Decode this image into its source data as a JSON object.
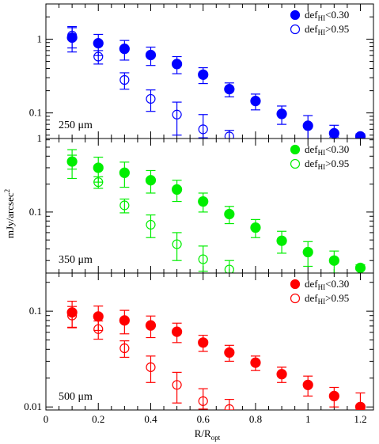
{
  "chart_data": {
    "type": "scatter",
    "xlabel": "R/R",
    "xlabel_sub": "opt",
    "ylabel": "mJy/arcsec",
    "ylabel_sup": "2",
    "xlim": [
      0,
      1.25
    ],
    "x_ticks": [
      0,
      0.2,
      0.4,
      0.6,
      0.8,
      1,
      1.2
    ],
    "x_tick_labels": [
      "0",
      "0.2",
      "0.4",
      "0.6",
      "0.8",
      "1",
      "1.2"
    ],
    "yscale": "log",
    "legend_labels": [
      {
        "prefix": "def",
        "sub": "HI",
        "suffix": "<0.30"
      },
      {
        "prefix": "def",
        "sub": "HI",
        "suffix": ">0.95"
      }
    ],
    "panels": [
      {
        "band": "250 μm",
        "color": "#0000ff",
        "ylim": [
          0.045,
          3.0
        ],
        "y_ticks": [
          0.1,
          1
        ],
        "y_tick_labels": [
          "0.1",
          "1"
        ],
        "series": [
          {
            "marker": "filled",
            "x": [
              0.1,
              0.2,
              0.3,
              0.4,
              0.5,
              0.6,
              0.7,
              0.8,
              0.9,
              1.0,
              1.1,
              1.2
            ],
            "y": [
              1.05,
              0.88,
              0.74,
              0.61,
              0.46,
              0.33,
              0.21,
              0.145,
              0.097,
              0.067,
              0.053,
              0.048
            ],
            "err_low": [
              0.38,
              0.28,
              0.22,
              0.17,
              0.12,
              0.08,
              0.045,
              0.035,
              0.027,
              0.025,
              0.006,
              0.002
            ],
            "err_high": [
              0.38,
              0.28,
              0.22,
              0.17,
              0.12,
              0.08,
              0.045,
              0.035,
              0.027,
              0.025,
              0.015,
              0.004
            ]
          },
          {
            "marker": "open",
            "x": [
              0.1,
              0.2,
              0.3,
              0.4,
              0.5,
              0.6,
              0.7
            ],
            "y": [
              1.12,
              0.58,
              0.28,
              0.155,
              0.095,
              0.06,
              0.048
            ],
            "err_low": [
              0.36,
              0.12,
              0.07,
              0.05,
              0.045,
              0.014,
              0.003
            ],
            "err_high": [
              0.36,
              0.12,
              0.07,
              0.05,
              0.045,
              0.035,
              0.01
            ]
          }
        ]
      },
      {
        "band": "350 μm",
        "color": "#00ee00",
        "ylim": [
          0.022,
          0.62
        ],
        "y_ticks": [
          0.1
        ],
        "y_tick_labels": [
          "0.1"
        ],
        "series": [
          {
            "marker": "filled",
            "x": [
              0.1,
              0.2,
              0.3,
              0.4,
              0.5,
              0.6,
              0.7,
              0.8,
              0.9,
              1.0,
              1.1,
              1.2
            ],
            "y": [
              0.35,
              0.3,
              0.265,
              0.22,
              0.175,
              0.13,
              0.095,
              0.068,
              0.049,
              0.037,
              0.03,
              0.025
            ],
            "err_low": [
              0.12,
              0.09,
              0.08,
              0.06,
              0.045,
              0.03,
              0.02,
              0.015,
              0.013,
              0.011,
              0.008,
              0.001
            ],
            "err_high": [
              0.12,
              0.09,
              0.08,
              0.06,
              0.045,
              0.03,
              0.02,
              0.015,
              0.013,
              0.011,
              0.008,
              0.002
            ]
          },
          {
            "marker": "open",
            "x": [
              0.1,
              0.2,
              0.3,
              0.4,
              0.5,
              0.6,
              0.7
            ],
            "y": [
              0.35,
              0.21,
              0.118,
              0.073,
              0.045,
              0.031,
              0.024
            ],
            "err_low": [
              0.06,
              0.03,
              0.02,
              0.02,
              0.015,
              0.008,
              0.002
            ],
            "err_high": [
              0.06,
              0.03,
              0.02,
              0.02,
              0.015,
              0.012,
              0.006
            ]
          }
        ]
      },
      {
        "band": "500 μm",
        "color": "#ff0000",
        "ylim": [
          0.0093,
          0.25
        ],
        "y_ticks": [
          0.01,
          0.1
        ],
        "y_tick_labels": [
          "0.01",
          "0.1"
        ],
        "series": [
          {
            "marker": "filled",
            "x": [
              0.1,
              0.2,
              0.3,
              0.4,
              0.5,
              0.6,
              0.7,
              0.8,
              0.9,
              1.0,
              1.1,
              1.2
            ],
            "y": [
              0.097,
              0.088,
              0.08,
              0.071,
              0.061,
              0.047,
              0.037,
              0.029,
              0.022,
              0.017,
              0.013,
              0.01
            ],
            "err_low": [
              0.03,
              0.025,
              0.022,
              0.018,
              0.014,
              0.009,
              0.007,
              0.005,
              0.004,
              0.004,
              0.003,
              0.003
            ],
            "err_high": [
              0.03,
              0.025,
              0.022,
              0.018,
              0.014,
              0.009,
              0.007,
              0.005,
              0.004,
              0.004,
              0.003,
              0.004
            ]
          },
          {
            "marker": "open",
            "x": [
              0.1,
              0.2,
              0.3,
              0.4,
              0.5,
              0.6,
              0.7
            ],
            "y": [
              0.09,
              0.065,
              0.041,
              0.026,
              0.017,
              0.0115,
              0.0095
            ],
            "err_low": [
              0.022,
              0.014,
              0.008,
              0.008,
              0.006,
              0.002,
              0.0002
            ],
            "err_high": [
              0.022,
              0.014,
              0.008,
              0.008,
              0.006,
              0.004,
              0.0025
            ]
          }
        ]
      }
    ]
  }
}
